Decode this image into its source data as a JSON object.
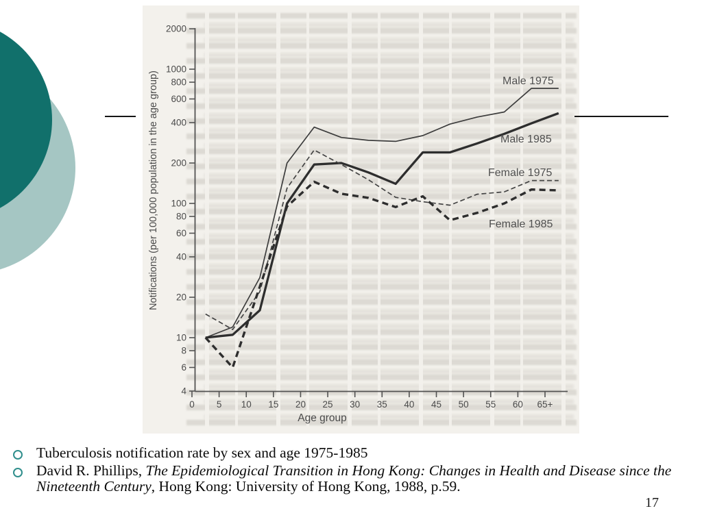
{
  "slide": {
    "page_number": "17",
    "bullets": [
      {
        "text": "Tuberculosis notification rate by sex and age 1975-1985"
      },
      {
        "prefix": "David R. Phillips, ",
        "italic": "The Epidemiological Transition in Hong Kong: Changes in Health and Disease since the Nineteenth Century",
        "suffix": ", Hong Kong: University of Hong Kong, 1988, p.59."
      }
    ],
    "colors": {
      "dark_circle": "#11706b",
      "light_circle": "#a5c6c3",
      "bullet_ring": "#2f8e8c",
      "scan_background": "#f3f1ec",
      "curve_color": "#383838",
      "rule_color": "#151515"
    }
  },
  "chart_data": {
    "type": "line",
    "title": "",
    "xlabel": "Age group",
    "ylabel": "Notifications (per 100,000 population in the age group)",
    "y_scale": "log",
    "ylim": [
      4,
      2000
    ],
    "grid": false,
    "legend_position": "inline-right",
    "y_ticks": [
      2000,
      1000,
      800,
      600,
      400,
      200,
      100,
      80,
      60,
      40,
      20,
      10,
      8,
      6,
      4
    ],
    "x_tick_labels": [
      "0",
      "5",
      "10",
      "15",
      "20",
      "25",
      "30",
      "35",
      "40",
      "45",
      "50",
      "55",
      "60",
      "65+"
    ],
    "x": [
      2.5,
      7.5,
      12.5,
      17.5,
      22.5,
      27.5,
      32.5,
      37.5,
      42.5,
      47.5,
      52.5,
      57.5,
      62.5,
      67.5
    ],
    "series": [
      {
        "name": "Male 1975",
        "style": "thin-solid",
        "values": [
          10,
          12,
          28,
          200,
          370,
          310,
          295,
          290,
          320,
          390,
          440,
          480,
          720,
          720
        ],
        "label": {
          "x": 525,
          "y": 115
        }
      },
      {
        "name": "Male 1985",
        "style": "thick-solid",
        "values": [
          10,
          10.5,
          16,
          100,
          195,
          200,
          170,
          140,
          240,
          240,
          280,
          330,
          395,
          470
        ],
        "label": {
          "x": 522,
          "y": 200
        }
      },
      {
        "name": "Female 1975",
        "style": "thin-dashed",
        "values": [
          15,
          11.5,
          22,
          130,
          250,
          195,
          150,
          111,
          103,
          97,
          117,
          122,
          148,
          148
        ],
        "label": {
          "x": 504,
          "y": 249
        }
      },
      {
        "name": "Female 1985",
        "style": "thick-dashed",
        "values": [
          10,
          6,
          24,
          95,
          145,
          118,
          110,
          94,
          113,
          75,
          85,
          100,
          127,
          125
        ],
        "label": {
          "x": 505,
          "y": 324
        }
      }
    ]
  }
}
